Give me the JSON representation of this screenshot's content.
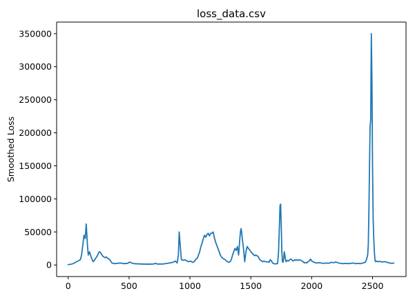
{
  "chart_data": {
    "type": "line",
    "title": "loss_data.csv",
    "xlabel": "",
    "ylabel": "Smoothed Loss",
    "xlim": [
      -95,
      2775
    ],
    "ylim": [
      -17500,
      367500
    ],
    "xticks": [
      0,
      500,
      1000,
      1500,
      2000,
      2500
    ],
    "yticks": [
      0,
      50000,
      100000,
      150000,
      200000,
      250000,
      300000,
      350000
    ],
    "grid": false,
    "line_color": "#1f77b4",
    "series": [
      {
        "x": [
          0,
          20,
          40,
          60,
          80,
          100,
          110,
          120,
          130,
          140,
          148,
          152,
          158,
          165,
          175,
          185,
          195,
          205,
          215,
          225,
          240,
          255,
          265,
          275,
          285,
          295,
          305,
          315,
          325,
          335,
          345,
          360,
          380,
          400,
          430,
          460,
          490,
          505,
          515,
          540,
          600,
          650,
          700,
          720,
          730,
          780,
          830,
          860,
          880,
          895,
          905,
          912,
          920,
          930,
          945,
          960,
          975,
          990,
          1005,
          1020,
          1035,
          1050,
          1060,
          1070,
          1080,
          1090,
          1100,
          1110,
          1120,
          1130,
          1140,
          1150,
          1160,
          1170,
          1180,
          1190,
          1200,
          1210,
          1220,
          1230,
          1240,
          1250,
          1260,
          1270,
          1280,
          1290,
          1300,
          1310,
          1320,
          1330,
          1340,
          1350,
          1360,
          1370,
          1380,
          1390,
          1400,
          1410,
          1415,
          1420,
          1425,
          1430,
          1440,
          1450,
          1460,
          1470,
          1480,
          1490,
          1500,
          1510,
          1520,
          1530,
          1540,
          1550,
          1560,
          1570,
          1580,
          1590,
          1600,
          1610,
          1620,
          1630,
          1640,
          1650,
          1660,
          1670,
          1680,
          1690,
          1700,
          1710,
          1720,
          1728,
          1735,
          1740,
          1745,
          1750,
          1755,
          1760,
          1765,
          1770,
          1775,
          1780,
          1785,
          1790,
          1800,
          1810,
          1820,
          1830,
          1840,
          1850,
          1860,
          1870,
          1880,
          1890,
          1900,
          1910,
          1920,
          1930,
          1940,
          1950,
          1960,
          1970,
          1980,
          1990,
          2000,
          2010,
          2020,
          2030,
          2040,
          2060,
          2080,
          2100,
          2120,
          2140,
          2160,
          2180,
          2200,
          2220,
          2240,
          2260,
          2280,
          2300,
          2320,
          2340,
          2360,
          2380,
          2400,
          2420,
          2440,
          2450,
          2460,
          2465,
          2470,
          2475,
          2480,
          2485,
          2490,
          2495,
          2500,
          2505,
          2510,
          2515,
          2520,
          2525,
          2530,
          2540,
          2560,
          2580,
          2600,
          2620,
          2640,
          2660,
          2675
        ],
        "y": [
          500,
          1000,
          2000,
          4000,
          6000,
          8000,
          15000,
          30000,
          45000,
          40000,
          62000,
          50000,
          30000,
          15000,
          20000,
          14000,
          9000,
          5000,
          7000,
          10000,
          14000,
          20000,
          19000,
          16000,
          13000,
          12000,
          11000,
          12000,
          10000,
          9000,
          7000,
          3000,
          2000,
          2500,
          3000,
          2000,
          2500,
          4500,
          3500,
          2000,
          1500,
          1200,
          1500,
          2500,
          1500,
          1500,
          3000,
          4000,
          6000,
          3000,
          15000,
          50000,
          30000,
          8000,
          7000,
          8000,
          6000,
          5000,
          6000,
          4000,
          5000,
          9000,
          10000,
          15000,
          20000,
          28000,
          33000,
          40000,
          45000,
          42000,
          46000,
          48000,
          44000,
          48000,
          48000,
          50000,
          42000,
          35000,
          30000,
          25000,
          20000,
          15000,
          12000,
          10000,
          9000,
          8000,
          6000,
          5000,
          4000,
          5000,
          8000,
          15000,
          20000,
          25000,
          22000,
          28000,
          15000,
          40000,
          50000,
          55000,
          50000,
          40000,
          25000,
          5000,
          20000,
          28000,
          25000,
          23000,
          20000,
          18000,
          16000,
          14000,
          15000,
          14000,
          13000,
          9000,
          7000,
          6000,
          5000,
          6000,
          5000,
          4500,
          5000,
          4000,
          8000,
          6000,
          3000,
          2000,
          1500,
          2000,
          2000,
          20000,
          60000,
          90000,
          92000,
          60000,
          20000,
          5000,
          4000,
          10000,
          20000,
          15000,
          8000,
          5000,
          7000,
          6000,
          8000,
          9000,
          7000,
          6000,
          8000,
          7000,
          8000,
          7000,
          8000,
          7000,
          6000,
          5000,
          3000,
          4000,
          3000,
          5000,
          6000,
          9000,
          6000,
          5000,
          4000,
          3500,
          3000,
          3500,
          3000,
          2500,
          3000,
          2500,
          4000,
          3500,
          4500,
          3000,
          2500,
          2000,
          2500,
          2000,
          2500,
          3000,
          2000,
          2500,
          2000,
          3000,
          4000,
          8000,
          15000,
          30000,
          80000,
          150000,
          210000,
          220000,
          350000,
          280000,
          150000,
          70000,
          40000,
          20000,
          8000,
          5000,
          6000,
          5000,
          5500,
          4500,
          5000,
          4000,
          3000,
          2500,
          3000
        ]
      }
    ]
  }
}
